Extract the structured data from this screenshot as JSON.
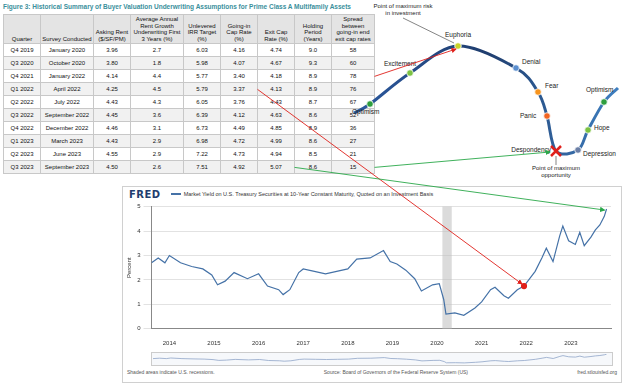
{
  "table": {
    "title": "Figure 3: Historical Summary of Buyer Valuation Underwriting Assumptions for Prime Class A Multifamily Assets",
    "columns": [
      "Quarter",
      "Survey Conducted",
      "Asking Rent ($/SF/PM)",
      "Average Annual Rent Growth Underwriting First 3 Years (%)",
      "Unlevered IRR Target (%)",
      "Going-in Cap Rate (%)",
      "Exit Cap Rate (%)",
      "Holding Period (Years)",
      "Spread between going-in end exit cap rates"
    ],
    "rows": [
      [
        "Q4 2019",
        "January 2020",
        "3.96",
        "2.7",
        "6.03",
        "4.16",
        "4.74",
        "9.0",
        "58"
      ],
      [
        "Q3 2020",
        "October 2020",
        "3.80",
        "1.8",
        "5.98",
        "4.07",
        "4.67",
        "9.3",
        "60"
      ],
      [
        "Q4 2021",
        "January 2022",
        "4.14",
        "4.4",
        "5.77",
        "3.40",
        "4.18",
        "8.9",
        "78"
      ],
      [
        "Q1 2022",
        "April 2022",
        "4.25",
        "4.5",
        "5.79",
        "3.37",
        "4.13",
        "8.9",
        "76"
      ],
      [
        "Q2 2022",
        "July 2022",
        "4.43",
        "4.3",
        "6.05",
        "3.76",
        "4.43",
        "8.7",
        "67"
      ],
      [
        "Q3 2022",
        "September 2022",
        "4.45",
        "3.6",
        "6.39",
        "4.12",
        "4.63",
        "8.6",
        "52"
      ],
      [
        "Q4 2022",
        "December 2022",
        "4.46",
        "3.1",
        "6.73",
        "4.49",
        "4.85",
        "8.9",
        "36"
      ],
      [
        "Q1 2023",
        "March 2023",
        "4.43",
        "2.9",
        "6.98",
        "4.72",
        "4.99",
        "8.6",
        "27"
      ],
      [
        "Q2 2023",
        "June 2023",
        "4.55",
        "2.9",
        "7.22",
        "4.73",
        "4.94",
        "8.5",
        "21"
      ],
      [
        "Q3 2023",
        "September 2023",
        "4.50",
        "2.6",
        "7.51",
        "4.92",
        "5.07",
        "8.6",
        "15"
      ]
    ]
  },
  "cycle": {
    "stages": [
      "Optimism",
      "Excitement",
      "Euphoria",
      "Denial",
      "Fear",
      "Panic",
      "Despondency",
      "Depression",
      "Hope",
      "Optimism"
    ],
    "notes": [
      "Point of maximum risk in investment",
      "Point of maximum opportunity"
    ]
  },
  "chart_data": {
    "type": "line",
    "brand": "FRED",
    "x": [
      2013.6,
      2013.75,
      2013.9,
      2014.0,
      2014.25,
      2014.5,
      2014.75,
      2014.95,
      2015.08,
      2015.25,
      2015.45,
      2015.75,
      2016.0,
      2016.2,
      2016.45,
      2016.55,
      2016.7,
      2016.9,
      2017.0,
      2017.25,
      2017.5,
      2017.75,
      2018.0,
      2018.2,
      2018.5,
      2018.8,
      2018.95,
      2019.1,
      2019.3,
      2019.5,
      2019.65,
      2019.9,
      2020.05,
      2020.15,
      2020.2,
      2020.4,
      2020.6,
      2020.85,
      2021.0,
      2021.2,
      2021.3,
      2021.5,
      2021.6,
      2021.8,
      2021.95,
      2022.2,
      2022.35,
      2022.45,
      2022.6,
      2022.75,
      2022.82,
      2022.95,
      2023.1,
      2023.2,
      2023.3,
      2023.45,
      2023.55,
      2023.65,
      2023.75,
      2023.8
    ],
    "series": [
      {
        "name": "Market Yield on U.S. Treasury Securities at 10-Year Constant Maturity, Quoted on an Investment Basis",
        "color": "#4572a7",
        "values": [
          2.7,
          2.9,
          2.7,
          3.0,
          2.7,
          2.55,
          2.45,
          2.2,
          1.8,
          1.95,
          2.3,
          2.05,
          2.25,
          1.75,
          1.6,
          1.4,
          1.6,
          2.3,
          2.45,
          2.35,
          2.25,
          2.35,
          2.45,
          2.85,
          2.9,
          3.2,
          2.75,
          2.65,
          2.4,
          2.05,
          1.55,
          1.8,
          1.85,
          1.2,
          0.6,
          0.65,
          0.55,
          0.85,
          1.1,
          1.6,
          1.7,
          1.35,
          1.25,
          1.6,
          1.75,
          2.35,
          2.9,
          3.3,
          2.75,
          3.8,
          4.2,
          3.6,
          3.45,
          3.95,
          3.4,
          3.75,
          4.05,
          4.25,
          4.6,
          4.9
        ]
      }
    ],
    "xlim": [
      2013.6,
      2023.9
    ],
    "xticks": [
      2014,
      2015,
      2016,
      2017,
      2018,
      2019,
      2020,
      2021,
      2022,
      2023
    ],
    "ylim": [
      0,
      5
    ],
    "yticks": [
      0,
      1,
      2,
      3,
      4,
      5
    ],
    "y_label": "Percent",
    "grid": true,
    "legend": "top",
    "recessions": [
      [
        2020.12,
        2020.33
      ]
    ],
    "footer": [
      "Shaded areas indicate U.S. recessions.",
      "Source: Board of Governors of the Federal Reserve System (US)",
      "fred.stlouisfed.org"
    ]
  }
}
